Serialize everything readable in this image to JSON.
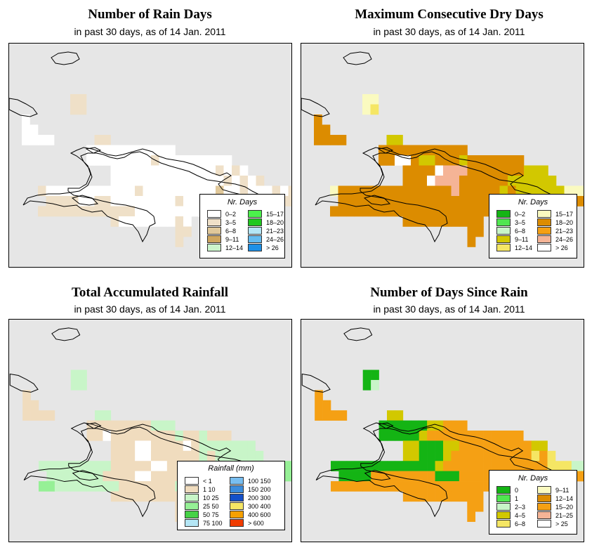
{
  "panels": [
    {
      "title": "Number of Rain Days",
      "subtitle": "in past 30 days, as of  14 Jan. 2011",
      "legend": {
        "title": "Nr. Days",
        "items": [
          {
            "label": "0–2",
            "color": "#ffffff"
          },
          {
            "label": "3–5",
            "color": "#efe0c8"
          },
          {
            "label": "6–8",
            "color": "#e0c89a"
          },
          {
            "label": "9–11",
            "color": "#cfa65e"
          },
          {
            "label": "12–14",
            "color": "#ccf5cc"
          },
          {
            "label": "15–17",
            "color": "#4cf04c"
          },
          {
            "label": "18–20",
            "color": "#1ec81e"
          },
          {
            "label": "21–23",
            "color": "#b4e6f5"
          },
          {
            "label": "24–26",
            "color": "#64bcf0"
          },
          {
            "label": "> 26",
            "color": "#1e90e6"
          }
        ]
      }
    },
    {
      "title": "Maximum Consecutive Dry Days",
      "subtitle": "in past 30 days, as of  14 Jan. 2011",
      "legend": {
        "title": "Nr. Days",
        "items": [
          {
            "label": "0–2",
            "color": "#14b414"
          },
          {
            "label": "3–5",
            "color": "#50e650"
          },
          {
            "label": "6–8",
            "color": "#c8f5c8"
          },
          {
            "label": "9–11",
            "color": "#d2c800"
          },
          {
            "label": "12–14",
            "color": "#f5e664"
          },
          {
            "label": "15–17",
            "color": "#fafac0"
          },
          {
            "label": "18–20",
            "color": "#dc8c00"
          },
          {
            "label": "21–23",
            "color": "#f5a014"
          },
          {
            "label": "24–26",
            "color": "#f5b496"
          },
          {
            "label": "> 26",
            "color": "#ffffff"
          }
        ]
      }
    },
    {
      "title": "Total Accumulated Rainfall",
      "subtitle": "in past 30 days, as of  14 Jan. 2011",
      "legend": {
        "title": "Rainfall (mm)",
        "items": [
          {
            "label": "< 1",
            "color": "#ffffff"
          },
          {
            "label": "1    10",
            "color": "#f0dcbe"
          },
          {
            "label": "10    25",
            "color": "#c8f5c8"
          },
          {
            "label": "25    50",
            "color": "#96f096"
          },
          {
            "label": "50    75",
            "color": "#46d246"
          },
          {
            "label": "75   100",
            "color": "#b4e6f5"
          },
          {
            "label": "100   150",
            "color": "#78bef0"
          },
          {
            "label": "150   200",
            "color": "#3c8cdc"
          },
          {
            "label": "200   300",
            "color": "#1450c8"
          },
          {
            "label": "300   400",
            "color": "#f5e664"
          },
          {
            "label": "400   600",
            "color": "#f5a000"
          },
          {
            "label": "> 600",
            "color": "#f03c00"
          }
        ]
      }
    },
    {
      "title": "Number of Days Since Rain",
      "subtitle": "in past 30 days, as of  14 Jan. 2011",
      "legend": {
        "title": "Nr. Days",
        "items": [
          {
            "label": "0",
            "color": "#14b414"
          },
          {
            "label": "1",
            "color": "#50e650"
          },
          {
            "label": "2–3",
            "color": "#c8f5c8"
          },
          {
            "label": "4–5",
            "color": "#d2c800"
          },
          {
            "label": "6–8",
            "color": "#f5e664"
          },
          {
            "label": "9–11",
            "color": "#fafac0"
          },
          {
            "label": "12–14",
            "color": "#dc8c00"
          },
          {
            "label": "15–20",
            "color": "#f5a014"
          },
          {
            "label": "21–25",
            "color": "#f5b496"
          },
          {
            "label": "> 25",
            "color": "#ffffff"
          }
        ]
      }
    }
  ],
  "map_grid": {
    "rows": [
      ".......RR..........................",
      ".......RR..........................",
      "R..................................",
      "RR.................................",
      "RRRR.....RR........................",
      "........RRRRRRRRRRR................",
      "........RRRRRRRRRRRRRRRRRR.........",
      "...........RRRRRRRRRRRRRRRRRRRR....",
      "...........RRRRRRRRRRRRRRRRRRRRR...",
      "..RRRRRRRRRRRRRRRRRRRRRRRRRRRRRRRRR",
      "...RRRRRRRRRRRRRRRRRRRRRRRRRRRRRRRR",
      "..RRRRRRRRRRRRRRRRRRRRRRRRRRRRRRR..",
      "...........RRRRRRRRRR..............",
      "...................RR..............",
      "...................R..............."
    ],
    "panel_cells": [
      "......ab..........................\n......bb..........................\nw.................................\nww................................\nwwww.....bb.......................\n........wwwwwwwwwww...............\n........wwwwwwwwbwwwwwwwww........\n...........wwwwwwwwwwwwwbwbw......\n...........wwwwwwwwwwwwwwbwbwb....\n..bwwwwwwwwwwwbwwwwwwwwwcwwbwwwbwb\n...bbbbwwbbwwwwwwwwbwwwwwwbbwwwbbb\n..bbbbbbbbbbbbwwwwwwwwwwwwwwwwwb..\n...........bwwwwwwwbw.............\n...................bb.............\n...................b..............",
      "......ff..........................\n......fg..........................\nh.................................\nhh................................\nhhhh.....dd.......................\n........hhhhhhhhhhh...............\n........hhwwhddhhhdhhhhhhh........\n...........hhhhwkkkhhhhhhhddd.....\n...........hhhwkkkhhhhhhdddddd....\n..fhhhhhhhhhhhhhhkhhhhhdhddddddfff\n...hhhhhhhhhhhhhhhhhhhhhhhhhhhhhhh\n..hhhhhhhhhhhhhhhhhhhhhhhhhhhhhh..\n...........hhhhhhhhhh.............\n...................hh.............\n...................h..............",
      "......ll..........................\n......ll..........................\nm.................................\nmm................................\nmmmm.....nn.......................\n........mmmmmmmmnnn...............\n........mmwmmmmmmmmnmmnmmm........\n...........mmmwwmmmmwmnnnnnnn.....\n...........mmmwwmmmmmmnmnnnnnn....\n..nnnnnnnnnmmmmmwwmmmmnmnnnnnnnnoo\n...nnnnnnnmmmmwwmmmmmmnnnnnnnnnooo\n..oonnnnnnnnmmmmmmmnnnnnnnnnnnnn..\n...........mmmmmmmmmm.............\n...................mm.............\n...................m..............",
      "......pp..........................\n......pq..........................\nr.................................\nrr................................\nrrrr.....ss.......................\n........ppppppssrrr...............\n........pppppsrrrrrrrrrrrr........\n...........sspppssrrrrrrrrrss.....\n...........sspppsrrrrrrrrrrtrt....\n..pppppppppppppsrrrrrrrrrrrrrtttqq\n...pppprrrrrrrrppprrrrrrrrrrrrrrrr\n..rrrrrrrrrrrrrrrrrrrrrrrrrrrrrr..\n...........rrrrrrrrrr.............\n...................rr.............\n...................r.............."
    ],
    "cell_colors": {
      "w": "#ffffff",
      "a": "#efe0c8",
      "b": "#efe0c8",
      "c": "#e0c89a",
      "f": "#fafac0",
      "g": "#f5e664",
      "h": "#dc8c00",
      "d": "#d2c800",
      "k": "#f5b496",
      "l": "#c8f5c8",
      "m": "#f0dcbe",
      "n": "#c8f5c8",
      "o": "#96f096",
      "p": "#14b414",
      "q": "#c8f5c8",
      "r": "#f5a014",
      "s": "#d2c800",
      "t": "#f5e664"
    }
  }
}
